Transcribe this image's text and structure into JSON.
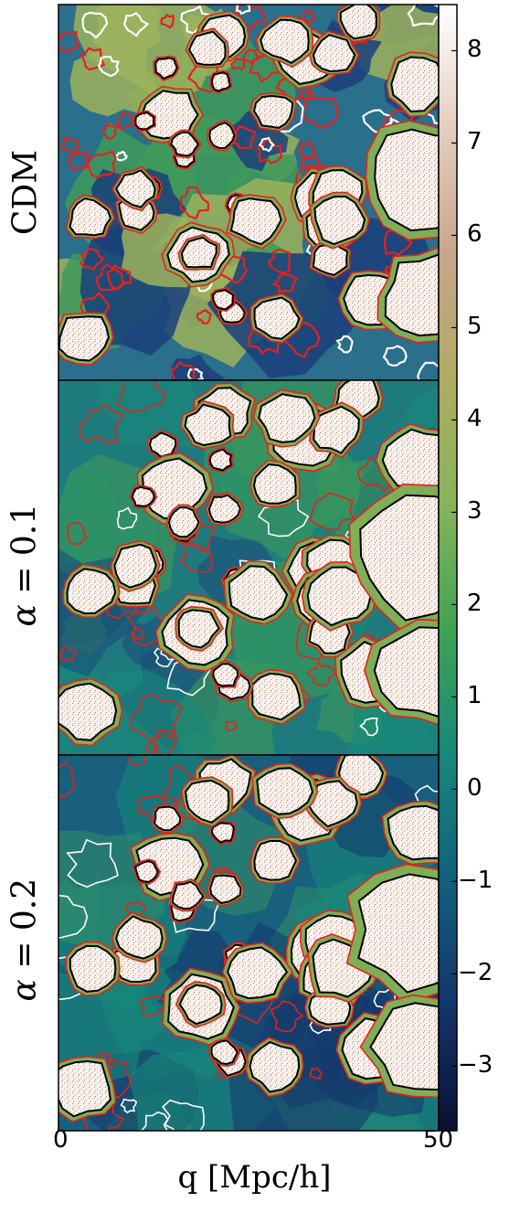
{
  "chart_data": {
    "type": "heatmap",
    "panels": [
      {
        "label": "CDM"
      },
      {
        "label_prefix": "α",
        "label_eq": " = ",
        "label_value": "0.1"
      },
      {
        "label_prefix": "α",
        "label_eq": " = ",
        "label_value": "0.2"
      }
    ],
    "x_ticks": [
      "0",
      "50"
    ],
    "xlim": [
      0,
      50
    ],
    "xlabel": "q [Mpc/h]",
    "colorbar": {
      "ticks": [
        8,
        7,
        6,
        5,
        4,
        3,
        2,
        1,
        0,
        -1,
        -2,
        -3
      ],
      "tick_labels": [
        "8",
        "7",
        "6",
        "5",
        "4",
        "3",
        "2",
        "1",
        "0",
        "−1",
        "−2",
        "−3"
      ],
      "range": [
        -3.7,
        8.5
      ],
      "colors": [
        "#0c1033",
        "#13356a",
        "#11607d",
        "#17887a",
        "#3fa354",
        "#86b45a",
        "#b0ab64",
        "#c8a58a",
        "#e4cdbf",
        "#ffffff"
      ]
    },
    "contour_colors": {
      "black": "#000000",
      "red": "#e8201c",
      "white": "#ffffff"
    }
  }
}
